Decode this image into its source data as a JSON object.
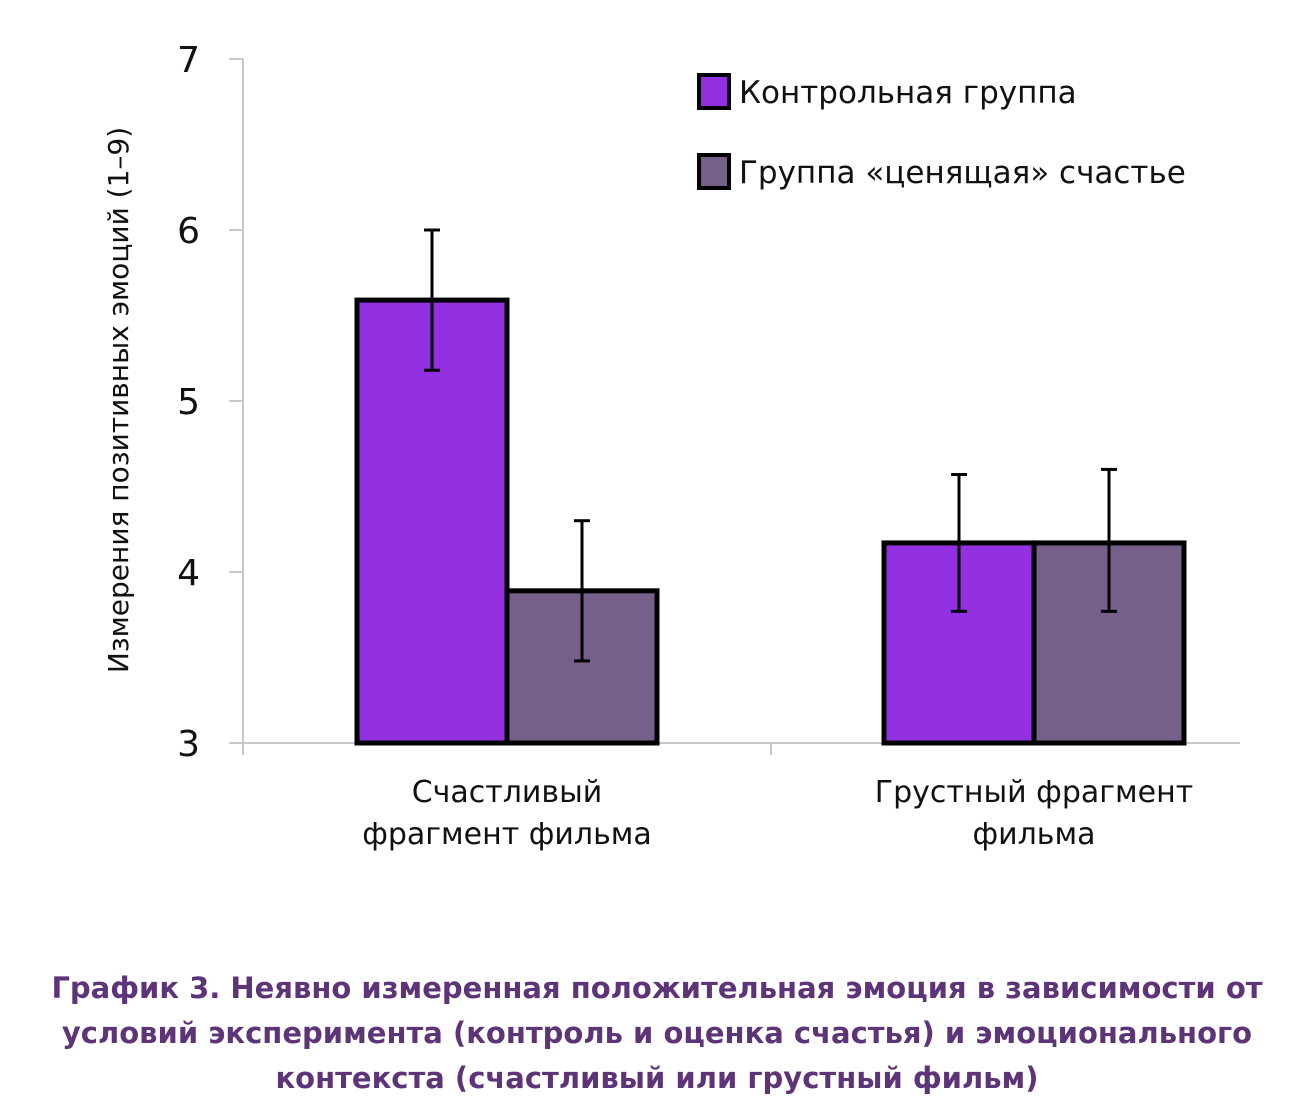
{
  "chart_data": {
    "type": "bar",
    "ylabel": "Измерения позитивных эмоций (1–9)",
    "xlabel": "",
    "ylim": [
      3,
      7
    ],
    "yticks": [
      "3",
      "4",
      "5",
      "6",
      "7"
    ],
    "categories": [
      "Счастливый фрагмент фильма",
      "Грустный фрагмент фильма"
    ],
    "series": [
      {
        "name": "Контрольная группа",
        "color": "#922fe0",
        "values": [
          5.59,
          4.17
        ],
        "error_low": [
          5.18,
          3.77
        ],
        "error_high": [
          6.0,
          4.57
        ]
      },
      {
        "name": "Группа «ценящая» счастье",
        "color": "#765f88",
        "values": [
          3.89,
          4.17
        ],
        "error_low": [
          3.48,
          3.77
        ],
        "error_high": [
          4.3,
          4.6
        ]
      }
    ],
    "legend": "top-right",
    "grid": false
  },
  "caption": "График 3. Неявно измеренная положительная эмоция в зависимости от условий эксперимента (контроль и оценка счастья) и эмоционального контекста (счастливый или грустный фильм)"
}
